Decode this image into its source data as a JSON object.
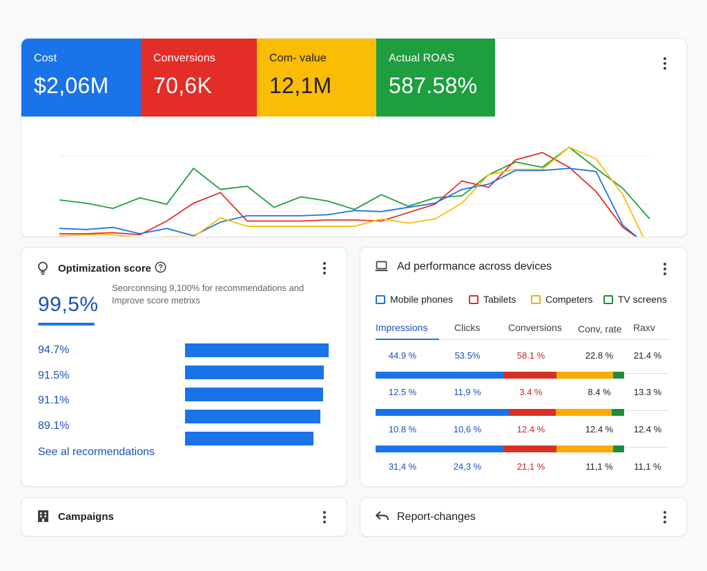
{
  "overview": {
    "tiles": [
      {
        "label": "Cost",
        "value": "$2,06M",
        "color": "#1a73e8"
      },
      {
        "label": "Conversions",
        "value": "70,6K",
        "color": "#e52d27"
      },
      {
        "label": "Com- value",
        "value": "12,1M",
        "color": "#fbbc04"
      },
      {
        "label": "Actual ROAS",
        "value": "587.58%",
        "color": "#1e9e3e"
      }
    ]
  },
  "chart_data": {
    "type": "line",
    "x": [
      1,
      2,
      3,
      4,
      5,
      6,
      7,
      8,
      9,
      10,
      11,
      12,
      13,
      14,
      15,
      16,
      17,
      18,
      19,
      20,
      21,
      22,
      23
    ],
    "ylim": [
      0,
      100
    ],
    "grid": true,
    "series": [
      {
        "color": "#1e9e3e",
        "values": [
          49,
          46,
          41,
          51,
          45,
          79,
          59,
          62,
          42,
          52,
          48,
          40,
          54,
          43,
          51,
          53,
          73,
          85,
          80,
          99,
          79,
          60,
          31
        ]
      },
      {
        "color": "#e52d27",
        "values": [
          17,
          17,
          18,
          16,
          29,
          46,
          56,
          29,
          29,
          29,
          30,
          30,
          29,
          37,
          45,
          67,
          61,
          87,
          94,
          80,
          57,
          23,
          5
        ]
      },
      {
        "color": "#1a73e8",
        "values": [
          22,
          21,
          23,
          17,
          22,
          15,
          28,
          34,
          34,
          34,
          35,
          39,
          38,
          42,
          46,
          59,
          64,
          77,
          77,
          79,
          76,
          25,
          4
        ]
      },
      {
        "color": "#fbbc04",
        "values": [
          15,
          16,
          16,
          13,
          14,
          14,
          32,
          24,
          24,
          24,
          24,
          24,
          31,
          27,
          31,
          46,
          73,
          78,
          78,
          99,
          88,
          54,
          1
        ]
      }
    ]
  },
  "optimization": {
    "title": "Optimization score",
    "score": "99,5%",
    "description": "Seorconnsing 9,100% for recommendations and Improve score metrixs",
    "rows": [
      {
        "pct": "94.7%",
        "value": 94.7
      },
      {
        "pct": "91.5%",
        "value": 91.5
      },
      {
        "pct": "91.1%",
        "value": 91.1
      },
      {
        "pct": "89.1%",
        "value": 89.1
      }
    ],
    "extra_bar_value": 84.6,
    "link": "See al recormendations"
  },
  "devices": {
    "title": "Ad performance across devices",
    "legend": [
      {
        "label": "Mobile phones",
        "color": "#1a73e8"
      },
      {
        "label": "Tabilets",
        "color": "#d93025"
      },
      {
        "label": "Competers",
        "color": "#f9ab00"
      },
      {
        "label": "TV screens",
        "color": "#1e8e3e"
      }
    ],
    "columns": [
      "Impressions",
      "Clicks",
      "Conversions",
      "Conv, rate",
      "Raxv"
    ],
    "rows": [
      [
        "44.9 %",
        "53.5%",
        "58.1 %",
        "22.8 %",
        "21.4 %"
      ],
      [
        "12.5 %",
        "11,9 %",
        "3.4 %",
        "8.4 %",
        "13.3 %"
      ],
      [
        "10.8 %",
        "10,6 %",
        "12.4 %",
        "12.4 %",
        "12.4 %"
      ],
      [
        "31,4 %",
        "24,3 %",
        "21,1 %",
        "11,1 %",
        "11,1 %"
      ]
    ],
    "stacks": [
      [
        51.4,
        21.4,
        22.8,
        4.4
      ],
      [
        53.5,
        19.0,
        22.5,
        5.0
      ],
      [
        51.4,
        21.4,
        22.8,
        4.4
      ]
    ]
  },
  "campaigns": {
    "title": "Campaigns"
  },
  "report": {
    "title": "Report-changes"
  }
}
